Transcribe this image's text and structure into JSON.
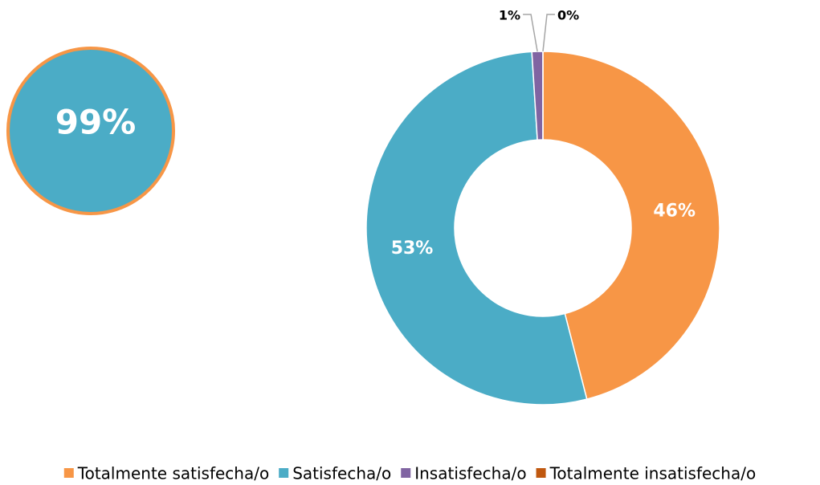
{
  "chart_data": {
    "type": "pie",
    "annotation": "99%",
    "categories": [
      "Totalmente satisfecha/o",
      "Satisfecha/o",
      "Insatisfecha/o",
      "Totalmente insatisfecha/o"
    ],
    "values": [
      46,
      53,
      1,
      0
    ],
    "value_labels": [
      "46%",
      "53%",
      "1%",
      "0%"
    ],
    "colors": [
      "#f79646",
      "#4bacc6",
      "#8064a2",
      "#c0580f"
    ],
    "legend": "bottom"
  }
}
